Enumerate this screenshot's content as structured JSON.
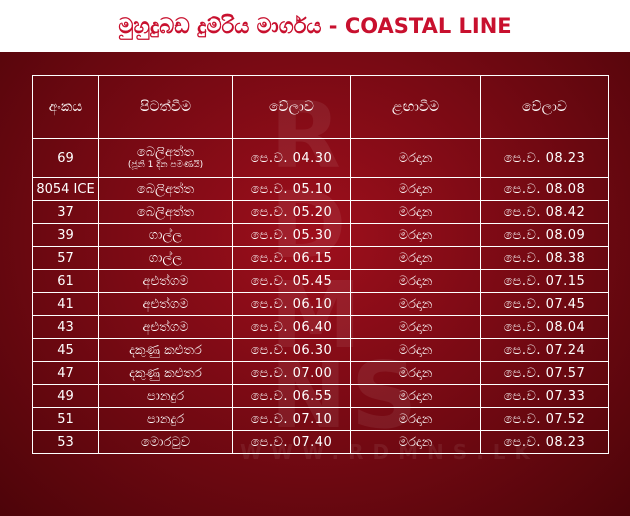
{
  "title": "මුහුදුබඩ දුම්රිය මාර්ගය - COASTAL LINE",
  "table": {
    "headers": [
      "අංකය",
      "පිටත්වීම",
      "වේලාව",
      "ළඟාවීම",
      "වේලාව"
    ],
    "rows": [
      {
        "no": "69",
        "from": "බෙලිඅත්ත",
        "note": "(ජූනි 1 දින පමණයි)",
        "dep": "පෙ.ව.  04.30",
        "to": "මරදාන",
        "arr": "පෙ.ව.  08.23"
      },
      {
        "no": "8054 ICE",
        "from": "බෙලිඅත්ත",
        "dep": "පෙ.ව.  05.10",
        "to": "මරදාන",
        "arr": "පෙ.ව.  08.08"
      },
      {
        "no": "37",
        "from": "බෙලිඅත්ත",
        "dep": "පෙ.ව.  05.20",
        "to": "මරදාන",
        "arr": "පෙ.ව.  08.42"
      },
      {
        "no": "39",
        "from": "ගාල්ල",
        "dep": "පෙ.ව.  05.30",
        "to": "මරදාන",
        "arr": "පෙ.ව.  08.09"
      },
      {
        "no": "57",
        "from": "ගාල්ල",
        "dep": "පෙ.ව.  06.15",
        "to": "මරදාන",
        "arr": "පෙ.ව.  08.38"
      },
      {
        "no": "61",
        "from": "අළුත්ගම",
        "dep": "පෙ.ව.  05.45",
        "to": "මරදාන",
        "arr": "පෙ.ව.  07.15"
      },
      {
        "no": "41",
        "from": "අළුත්ගම",
        "dep": "පෙ.ව.  06.10",
        "to": "මරදාන",
        "arr": "පෙ.ව.  07.45"
      },
      {
        "no": "43",
        "from": "අළුත්ගම",
        "dep": "පෙ.ව.  06.40",
        "to": "මරදාන",
        "arr": "පෙ.ව.  08.04"
      },
      {
        "no": "45",
        "from": "දකුණු කළුතර",
        "dep": "පෙ.ව.  06.30",
        "to": "මරදාන",
        "arr": "පෙ.ව.  07.24"
      },
      {
        "no": "47",
        "from": "දකුණු කළුතර",
        "dep": "පෙ.ව.  07.00",
        "to": "මරදාන",
        "arr": "පෙ.ව.  07.57"
      },
      {
        "no": "49",
        "from": "පානදුර",
        "dep": "පෙ.ව.  06.55",
        "to": "මරදාන",
        "arr": "පෙ.ව.  07.33"
      },
      {
        "no": "51",
        "from": "පානදුර",
        "dep": "පෙ.ව.  07.10",
        "to": "මරදාන",
        "arr": "පෙ.ව.  07.52"
      },
      {
        "no": "53",
        "from": "මොරටුව",
        "dep": "පෙ.ව.  07.40",
        "to": "මරදාන",
        "arr": "පෙ.ව.  08.23"
      }
    ]
  },
  "watermark": {
    "letters": [
      "R",
      "D",
      "M",
      "NS"
    ],
    "site": "WWW.RDMNS.LK"
  },
  "colors": {
    "title": "#c8102e",
    "panel": "#7a0a14",
    "text": "#ffffff"
  }
}
